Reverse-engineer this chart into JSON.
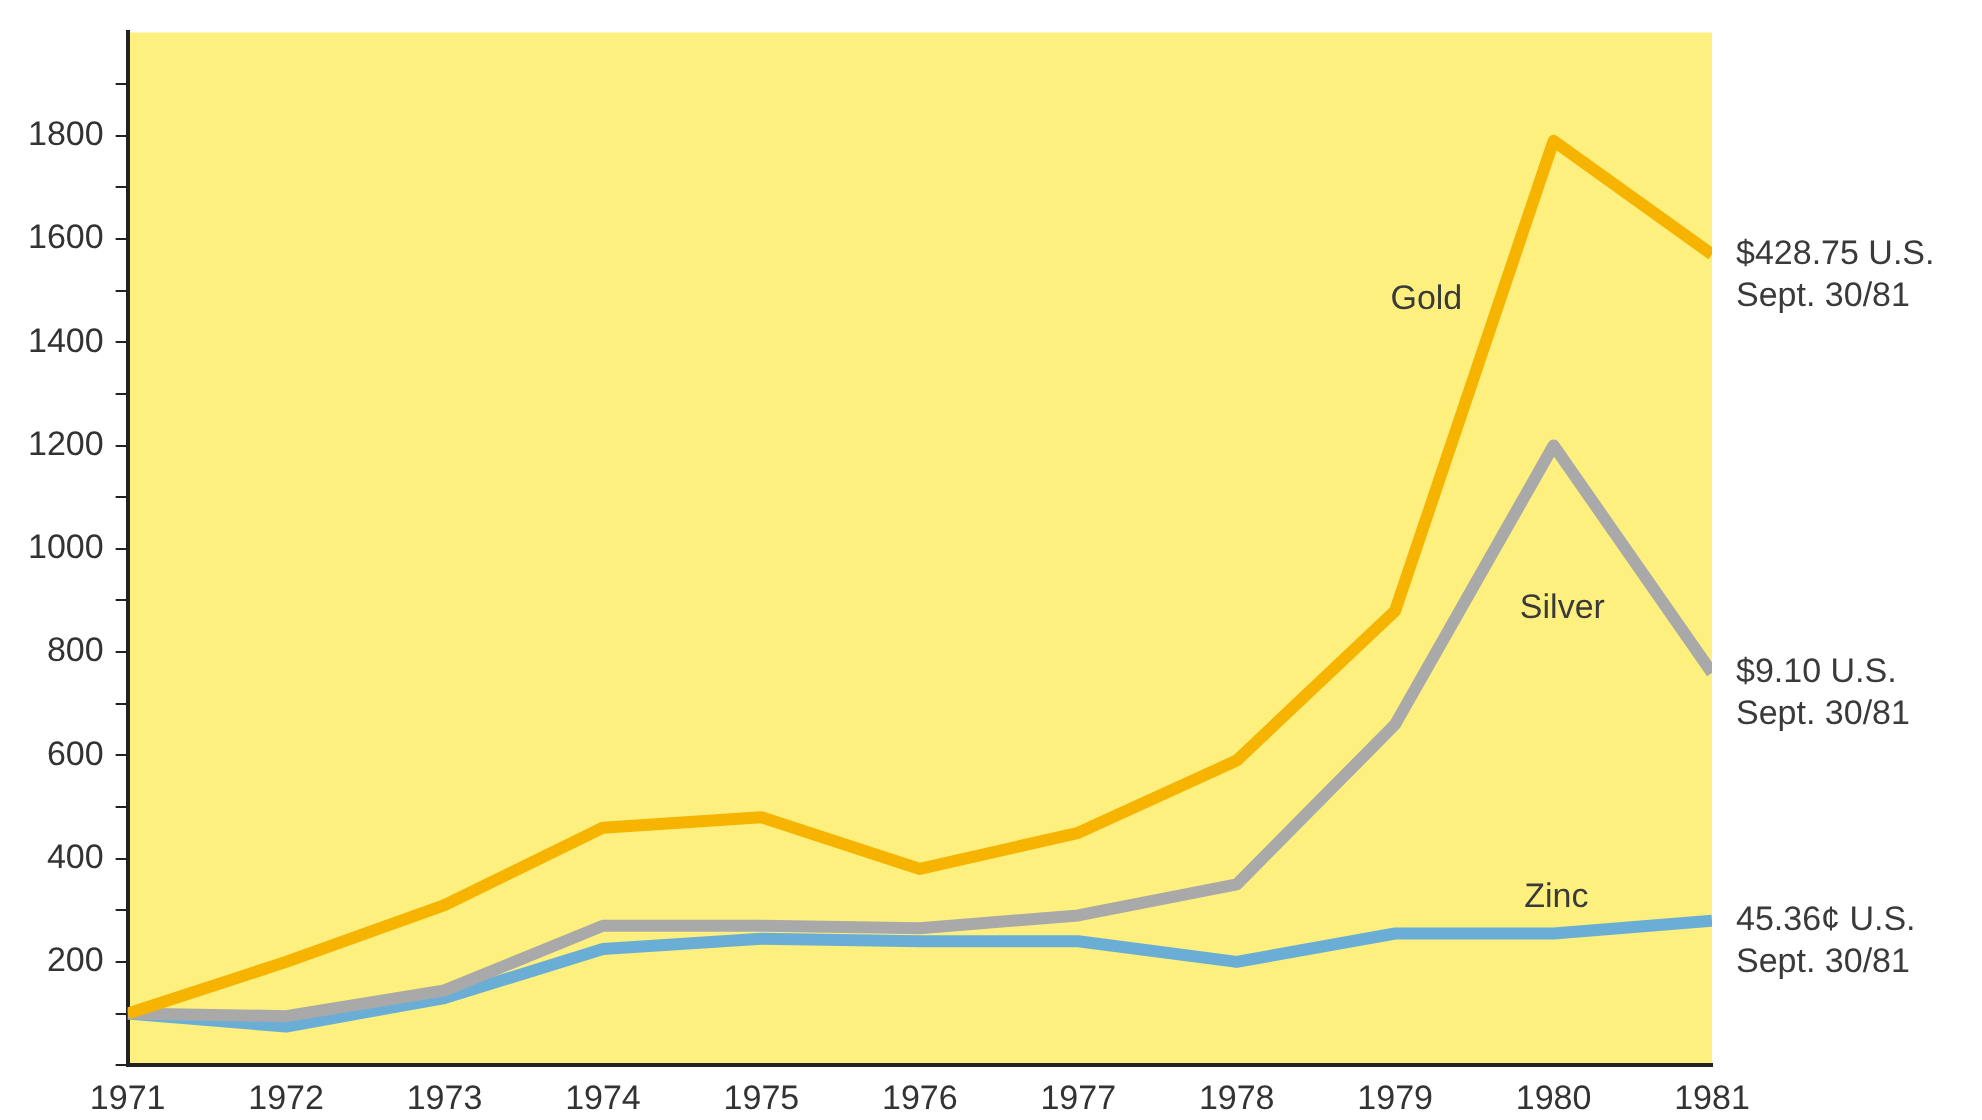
{
  "chart_data": {
    "type": "line",
    "x": [
      1971,
      1972,
      1973,
      1974,
      1975,
      1976,
      1977,
      1978,
      1979,
      1980,
      1981
    ],
    "series": [
      {
        "name": "Gold",
        "color": "#f6b400",
        "values": [
          100,
          200,
          310,
          460,
          480,
          380,
          450,
          590,
          880,
          1790,
          1570
        ]
      },
      {
        "name": "Silver",
        "color": "#a9a9a9",
        "values": [
          100,
          95,
          145,
          270,
          270,
          265,
          290,
          350,
          660,
          1200,
          760
        ]
      },
      {
        "name": "Zinc",
        "color": "#6aaed6",
        "values": [
          100,
          75,
          130,
          225,
          245,
          240,
          240,
          200,
          255,
          255,
          280
        ]
      }
    ],
    "xlim": [
      1971,
      1981
    ],
    "xticks": [
      1971,
      1972,
      1973,
      1974,
      1975,
      1976,
      1977,
      1978,
      1979,
      1980,
      1981
    ],
    "ylim": [
      0,
      2000
    ],
    "yticks": [
      {
        "value": 0,
        "label": null
      },
      {
        "value": 100,
        "label": null
      },
      200,
      {
        "value": 300,
        "label": null
      },
      400,
      {
        "value": 500,
        "label": null
      },
      600,
      {
        "value": 700,
        "label": null
      },
      800,
      {
        "value": 900,
        "label": null
      },
      1000,
      {
        "value": 1100,
        "label": null
      },
      1200,
      {
        "value": 1300,
        "label": null
      },
      1400,
      {
        "value": 1500,
        "label": null
      },
      1600,
      {
        "value": 1700,
        "label": null
      },
      1800,
      {
        "value": 1900,
        "label": null
      }
    ],
    "annotations": [
      "$428.75 U.S.\nSept. 30/81",
      "$9.10 U.S.\nSept. 30/81",
      "45.36¢ U.S.\nSept. 30/81"
    ],
    "grid": false,
    "legend": false,
    "marker": "none",
    "line_style": "solid"
  }
}
